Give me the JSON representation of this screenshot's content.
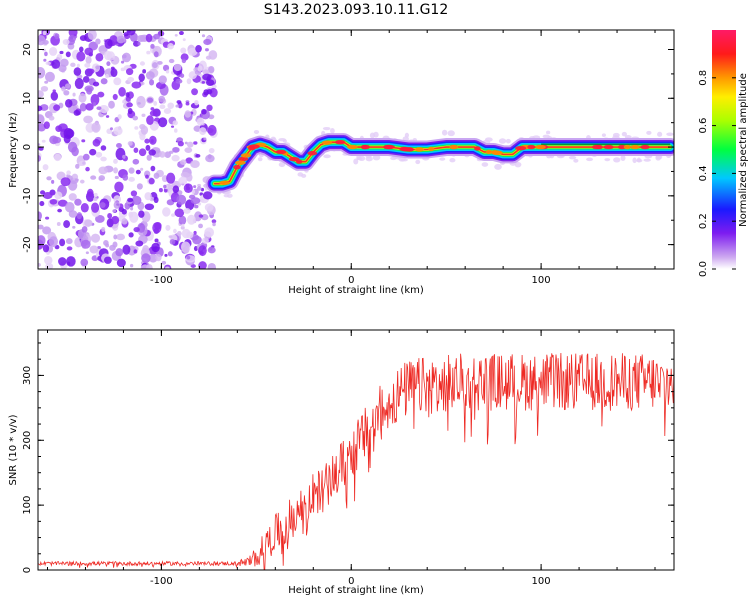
{
  "title": "S143.2023.093.10.11.G12",
  "chart_data": [
    {
      "type": "heatmap",
      "xlabel": "Height of straight line (km)",
      "ylabel": "Frequency (Hz)",
      "xlim": [
        -165,
        170
      ],
      "ylim": [
        -25,
        24
      ],
      "xticks": [
        -100,
        0,
        100
      ],
      "yticks": [
        -20,
        -10,
        0,
        10,
        20
      ],
      "colorbar": {
        "label": "Normalized spectral amplitude",
        "range": [
          0,
          1
        ],
        "ticks": [
          "0.0",
          "0.2",
          "0.4",
          "0.6",
          "0.8"
        ]
      },
      "noise_region": {
        "x_range": [
          -165,
          -72
        ],
        "y_range": [
          -25,
          24
        ]
      },
      "ridge": {
        "x": [
          -72,
          -68,
          -64,
          -60,
          -56,
          -52,
          -48,
          -44,
          -40,
          -36,
          -32,
          -28,
          -24,
          -20,
          -16,
          -12,
          -8,
          -4,
          0,
          10,
          20,
          30,
          40,
          50,
          60,
          65,
          70,
          75,
          80,
          85,
          90,
          100,
          110,
          120,
          130,
          140,
          150,
          160,
          168
        ],
        "y": [
          -7.5,
          -7.5,
          -7,
          -4,
          -2,
          0,
          0.5,
          0,
          -1,
          -1,
          -2,
          -3,
          -3,
          -1,
          0.5,
          1,
          1,
          1,
          0,
          0,
          0,
          -0.5,
          -0.5,
          0,
          0,
          0,
          -1,
          -1,
          -1.5,
          -1.5,
          0,
          0,
          0,
          0,
          0,
          0,
          0,
          0,
          0
        ]
      }
    },
    {
      "type": "line",
      "xlabel": "Height of straight line (km)",
      "ylabel": "SNR (10 * v/v)",
      "xlim": [
        -165,
        170
      ],
      "ylim": [
        0,
        370
      ],
      "xticks": [
        -100,
        0,
        100
      ],
      "yticks": [
        0,
        100,
        200,
        300
      ],
      "color": "#ee2a24",
      "trend": {
        "x": [
          -165,
          -60,
          -55,
          -50,
          -45,
          -40,
          -35,
          -30,
          -25,
          -20,
          -15,
          -10,
          -5,
          0,
          5,
          10,
          15,
          20,
          30,
          40,
          60,
          80,
          100,
          120,
          140,
          170
        ],
        "y": [
          10,
          10,
          12,
          20,
          40,
          55,
          70,
          85,
          100,
          115,
          125,
          140,
          160,
          180,
          200,
          220,
          240,
          260,
          280,
          285,
          290,
          290,
          290,
          290,
          290,
          290
        ]
      },
      "noise_amplitude": {
        "x": [
          -165,
          -60,
          -40,
          0,
          20,
          170
        ],
        "y": [
          6,
          6,
          60,
          80,
          90,
          90
        ]
      }
    }
  ]
}
